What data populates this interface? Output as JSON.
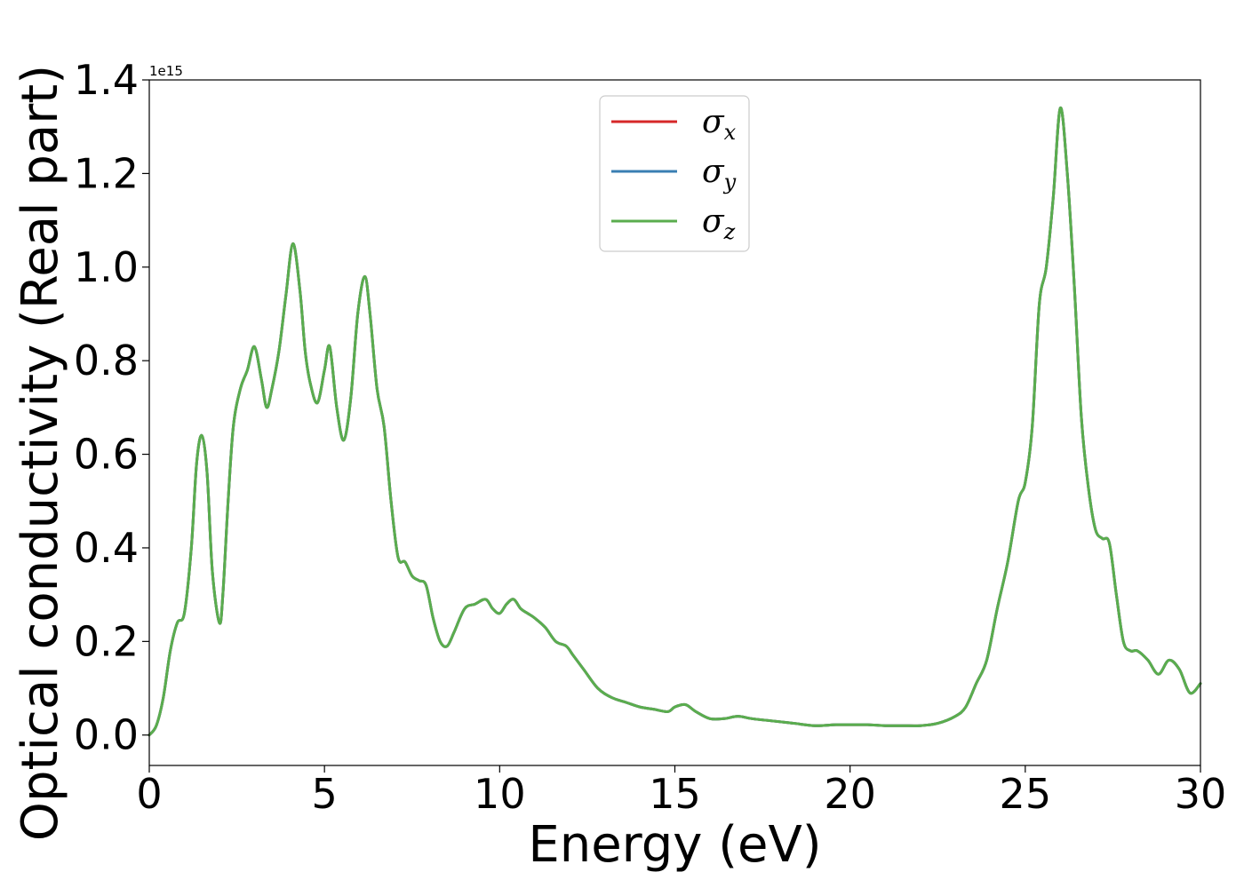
{
  "chart_data": {
    "type": "line",
    "xlabel": "Energy (eV)",
    "ylabel": "Optical conductivity (Real part)",
    "y_offset_label": "1e15",
    "xlim": [
      0,
      30
    ],
    "ylim": [
      -0.065,
      1.4
    ],
    "xticks": [
      0,
      5,
      10,
      15,
      20,
      25,
      30
    ],
    "xtick_labels": [
      "0",
      "5",
      "10",
      "15",
      "20",
      "25",
      "30"
    ],
    "yticks": [
      0.0,
      0.2,
      0.4,
      0.6,
      0.8,
      1.0,
      1.2,
      1.4
    ],
    "ytick_labels": [
      "0.0",
      "0.2",
      "0.4",
      "0.6",
      "0.8",
      "1.0",
      "1.2",
      "1.4"
    ],
    "grid": false,
    "legend_position": "top-center",
    "x": [
      0,
      0.2,
      0.4,
      0.6,
      0.8,
      1.0,
      1.2,
      1.35,
      1.5,
      1.65,
      1.8,
      2.0,
      2.1,
      2.25,
      2.4,
      2.6,
      2.8,
      3.0,
      3.2,
      3.35,
      3.5,
      3.7,
      3.9,
      4.1,
      4.3,
      4.45,
      4.6,
      4.8,
      5.0,
      5.15,
      5.35,
      5.55,
      5.75,
      5.95,
      6.15,
      6.3,
      6.5,
      6.7,
      6.9,
      7.1,
      7.3,
      7.5,
      7.7,
      7.9,
      8.1,
      8.3,
      8.5,
      8.7,
      9.0,
      9.3,
      9.6,
      9.8,
      10.0,
      10.2,
      10.4,
      10.6,
      10.8,
      11.0,
      11.3,
      11.6,
      11.9,
      12.1,
      12.4,
      12.8,
      13.2,
      13.6,
      14.0,
      14.4,
      14.8,
      15.0,
      15.3,
      15.6,
      16.0,
      16.4,
      16.8,
      17.2,
      17.8,
      18.4,
      19.0,
      19.6,
      20.0,
      20.5,
      21.0,
      21.5,
      22.0,
      22.5,
      23.0,
      23.3,
      23.6,
      23.9,
      24.2,
      24.5,
      24.8,
      25.0,
      25.2,
      25.4,
      25.6,
      25.8,
      26.0,
      26.2,
      26.4,
      26.6,
      26.8,
      27.0,
      27.2,
      27.4,
      27.6,
      27.8,
      28.0,
      28.2,
      28.5,
      28.8,
      29.1,
      29.4,
      29.7,
      30.0
    ],
    "series": [
      {
        "name": "σx",
        "color": "#d62728",
        "values": [
          0.0,
          0.02,
          0.08,
          0.18,
          0.24,
          0.26,
          0.4,
          0.58,
          0.64,
          0.56,
          0.35,
          0.24,
          0.3,
          0.5,
          0.66,
          0.74,
          0.78,
          0.83,
          0.76,
          0.7,
          0.74,
          0.82,
          0.94,
          1.05,
          0.95,
          0.82,
          0.75,
          0.71,
          0.78,
          0.83,
          0.7,
          0.63,
          0.72,
          0.9,
          0.98,
          0.9,
          0.74,
          0.66,
          0.5,
          0.38,
          0.37,
          0.34,
          0.33,
          0.32,
          0.25,
          0.2,
          0.19,
          0.22,
          0.27,
          0.28,
          0.29,
          0.27,
          0.26,
          0.28,
          0.29,
          0.27,
          0.26,
          0.25,
          0.23,
          0.2,
          0.19,
          0.17,
          0.14,
          0.1,
          0.08,
          0.07,
          0.06,
          0.055,
          0.05,
          0.06,
          0.065,
          0.05,
          0.035,
          0.035,
          0.04,
          0.035,
          0.03,
          0.025,
          0.02,
          0.022,
          0.022,
          0.022,
          0.02,
          0.02,
          0.02,
          0.025,
          0.04,
          0.06,
          0.11,
          0.16,
          0.27,
          0.37,
          0.5,
          0.54,
          0.66,
          0.92,
          1.0,
          1.15,
          1.34,
          1.2,
          0.96,
          0.68,
          0.53,
          0.44,
          0.42,
          0.41,
          0.3,
          0.2,
          0.18,
          0.18,
          0.16,
          0.13,
          0.16,
          0.14,
          0.09,
          0.11
        ]
      },
      {
        "name": "σy",
        "color": "#3a7fb3",
        "values": [
          0.0,
          0.02,
          0.08,
          0.18,
          0.24,
          0.26,
          0.4,
          0.58,
          0.64,
          0.56,
          0.35,
          0.24,
          0.3,
          0.5,
          0.66,
          0.74,
          0.78,
          0.83,
          0.76,
          0.7,
          0.74,
          0.82,
          0.94,
          1.05,
          0.95,
          0.82,
          0.75,
          0.71,
          0.78,
          0.83,
          0.7,
          0.63,
          0.72,
          0.9,
          0.98,
          0.9,
          0.74,
          0.66,
          0.5,
          0.38,
          0.37,
          0.34,
          0.33,
          0.32,
          0.25,
          0.2,
          0.19,
          0.22,
          0.27,
          0.28,
          0.29,
          0.27,
          0.26,
          0.28,
          0.29,
          0.27,
          0.26,
          0.25,
          0.23,
          0.2,
          0.19,
          0.17,
          0.14,
          0.1,
          0.08,
          0.07,
          0.06,
          0.055,
          0.05,
          0.06,
          0.065,
          0.05,
          0.035,
          0.035,
          0.04,
          0.035,
          0.03,
          0.025,
          0.02,
          0.022,
          0.022,
          0.022,
          0.02,
          0.02,
          0.02,
          0.025,
          0.04,
          0.06,
          0.11,
          0.16,
          0.27,
          0.37,
          0.5,
          0.54,
          0.66,
          0.92,
          1.0,
          1.15,
          1.34,
          1.2,
          0.96,
          0.68,
          0.53,
          0.44,
          0.42,
          0.41,
          0.3,
          0.2,
          0.18,
          0.18,
          0.16,
          0.13,
          0.16,
          0.14,
          0.09,
          0.11
        ]
      },
      {
        "name": "σz",
        "color": "#5aad4e",
        "values": [
          0.0,
          0.02,
          0.08,
          0.18,
          0.24,
          0.26,
          0.4,
          0.58,
          0.64,
          0.56,
          0.35,
          0.24,
          0.3,
          0.5,
          0.66,
          0.74,
          0.78,
          0.83,
          0.76,
          0.7,
          0.74,
          0.82,
          0.94,
          1.05,
          0.95,
          0.82,
          0.75,
          0.71,
          0.78,
          0.83,
          0.7,
          0.63,
          0.72,
          0.9,
          0.98,
          0.9,
          0.74,
          0.66,
          0.5,
          0.38,
          0.37,
          0.34,
          0.33,
          0.32,
          0.25,
          0.2,
          0.19,
          0.22,
          0.27,
          0.28,
          0.29,
          0.27,
          0.26,
          0.28,
          0.29,
          0.27,
          0.26,
          0.25,
          0.23,
          0.2,
          0.19,
          0.17,
          0.14,
          0.1,
          0.08,
          0.07,
          0.06,
          0.055,
          0.05,
          0.06,
          0.065,
          0.05,
          0.035,
          0.035,
          0.04,
          0.035,
          0.03,
          0.025,
          0.02,
          0.022,
          0.022,
          0.022,
          0.02,
          0.02,
          0.02,
          0.025,
          0.04,
          0.06,
          0.11,
          0.16,
          0.27,
          0.37,
          0.5,
          0.54,
          0.66,
          0.92,
          1.0,
          1.15,
          1.34,
          1.2,
          0.96,
          0.68,
          0.53,
          0.44,
          0.42,
          0.41,
          0.3,
          0.2,
          0.18,
          0.18,
          0.16,
          0.13,
          0.16,
          0.14,
          0.09,
          0.11
        ]
      }
    ],
    "legend": [
      {
        "symbol": "σ",
        "sub": "x",
        "color": "#d62728"
      },
      {
        "symbol": "σ",
        "sub": "y",
        "color": "#3a7fb3"
      },
      {
        "symbol": "σ",
        "sub": "z",
        "color": "#5aad4e"
      }
    ]
  }
}
